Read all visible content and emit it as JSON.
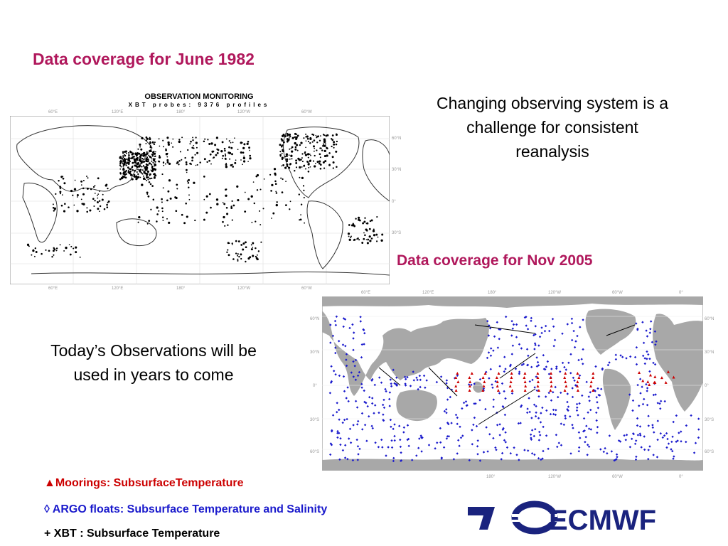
{
  "slide": {
    "title_1982": "Data coverage for June 1982",
    "title_2005": "Data coverage for Nov 2005",
    "note_right": "Changing observing system is a challenge for consistent reanalysis",
    "note_left": "Today’s Observations will be used in years to come"
  },
  "map_1982": {
    "header": "OBSERVATION MONITORING",
    "subheader": "XBT probes: 9376 profiles",
    "top_ticks": [
      "60°E",
      "120°E",
      "180°",
      "120°W",
      "60°W"
    ],
    "bottom_ticks": [
      "60°E",
      "120°E",
      "180°",
      "120°W",
      "60°W"
    ],
    "right_ticks": [
      "60°N",
      "30°N",
      "0°",
      "30°S",
      "60°S"
    ],
    "colors": {
      "observation": "#000000",
      "land_outline": "#333333"
    }
  },
  "map_2005": {
    "top_ticks": [
      "60°E",
      "120°E",
      "180°",
      "120°W",
      "60°W",
      "0°"
    ],
    "bottom_ticks": [
      "180°",
      "120°W",
      "60°W",
      "0°"
    ],
    "left_ticks": [
      "60°N",
      "30°N",
      "0°",
      "30°S",
      "60°S"
    ],
    "right_ticks": [
      "60°N",
      "30°N",
      "0°",
      "30°S",
      "60°S"
    ],
    "colors": {
      "argo": "#1a1acc",
      "moorings": "#cc0000",
      "xbt": "#000000",
      "land": "#a8a8a8"
    }
  },
  "legend": {
    "moorings": "▲Moorings: SubsurfaceTemperature",
    "argo": "◊ ARGO floats: Subsurface Temperature and  Salinity",
    "xbt": "+ XBT : Subsurface Temperature"
  },
  "logo": {
    "text": "ECMWF",
    "color": "#1a237e",
    "icon": "ecmwf-logo-icon"
  }
}
